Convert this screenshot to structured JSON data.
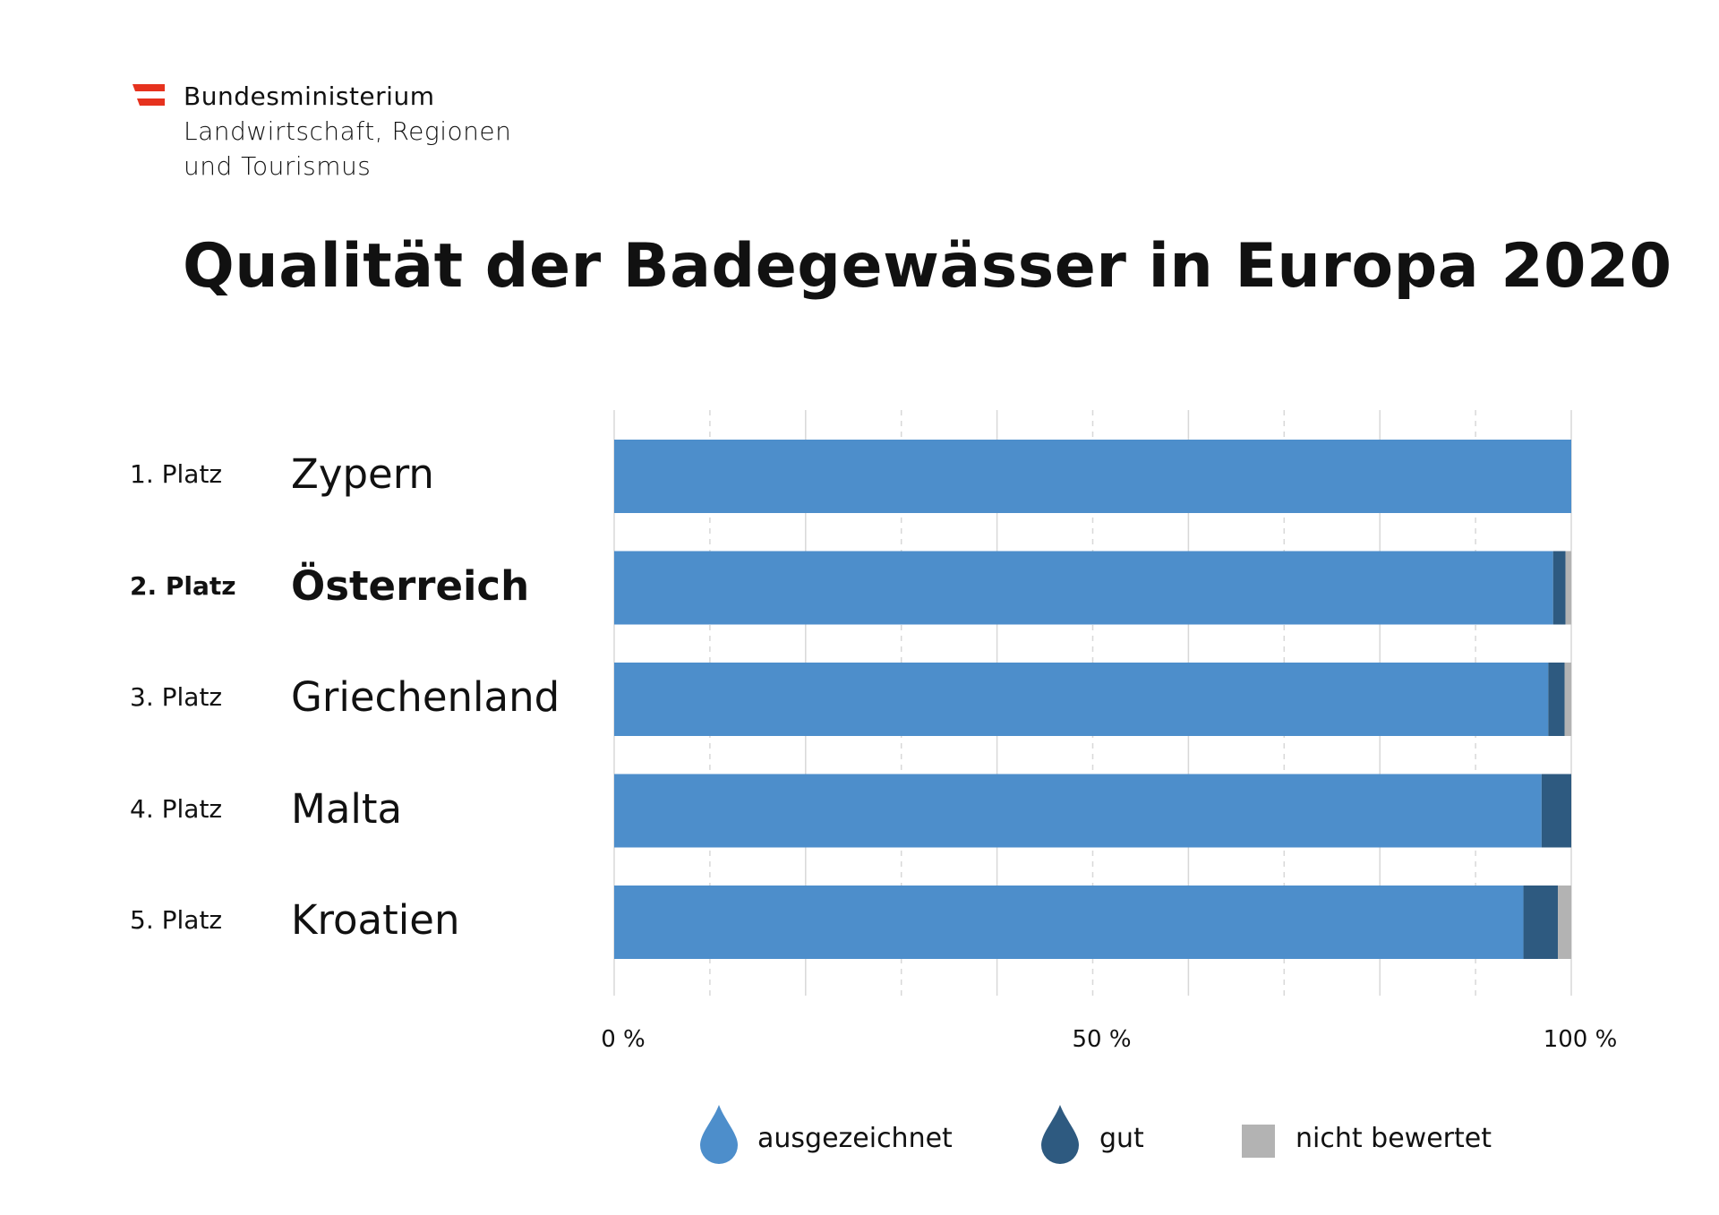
{
  "logo": {
    "line1": "Bundesministerium",
    "line2": "Landwirtschaft, Regionen",
    "line3": "und Tourismus",
    "flag_color": "#e6321e"
  },
  "chart_data": {
    "type": "bar",
    "orientation": "horizontal",
    "stacked": true,
    "title": "Qualität der Badegewässer in Europa 2020",
    "xlabel": "",
    "ylabel": "",
    "xlim": [
      0,
      100
    ],
    "x_ticks": [
      "0 %",
      "50 %",
      "100 %"
    ],
    "grid": true,
    "legend_position": "bottom",
    "ranks": [
      "1. Platz",
      "2. Platz",
      "3. Platz",
      "4. Platz",
      "5. Platz"
    ],
    "categories": [
      "Zypern",
      "Österreich",
      "Griechenland",
      "Malta",
      "Kroatien"
    ],
    "highlight_index": 1,
    "series": [
      {
        "name": "ausgezeichnet",
        "color": "#4d8ecb",
        "values": [
          100,
          98.1,
          97.6,
          96.9,
          95.0
        ]
      },
      {
        "name": "gut",
        "color": "#2e5a80",
        "values": [
          0,
          1.3,
          1.7,
          3.1,
          3.6
        ]
      },
      {
        "name": "nicht bewertet",
        "color": "#b3b3b3",
        "values": [
          0,
          0.6,
          0.7,
          0,
          1.4
        ]
      }
    ]
  }
}
